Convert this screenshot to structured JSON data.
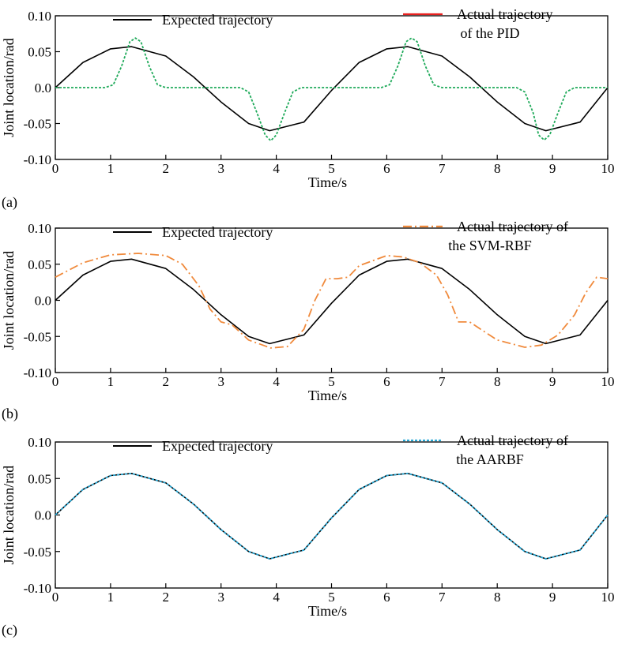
{
  "chart_data": [
    {
      "panel": "(a)",
      "type": "line",
      "xlabel": "Time/s",
      "ylabel": "Joint location/rad",
      "xlim": [
        0,
        10
      ],
      "ylim": [
        -0.1,
        0.1
      ],
      "xticks": [
        0,
        1,
        2,
        3,
        4,
        5,
        6,
        7,
        8,
        9,
        10
      ],
      "yticks": [
        0.1,
        0.05,
        0.0,
        -0.05,
        -0.1
      ],
      "ytick_labels": [
        "0.10",
        "0.05",
        "0.0",
        "-0.05",
        "-0.10"
      ],
      "series": [
        {
          "name": "Expected trajectory",
          "legend": "Expected trajectory",
          "style": "solid",
          "color": "#000000",
          "x": [
            0,
            0.5,
            1,
            1.38,
            2,
            2.5,
            3,
            3.5,
            3.88,
            4.5,
            5,
            5.5,
            6,
            6.38,
            7,
            7.5,
            8,
            8.5,
            8.88,
            9.5,
            10
          ],
          "y": [
            0,
            0.035,
            0.054,
            0.057,
            0.044,
            0.015,
            -0.02,
            -0.05,
            -0.06,
            -0.048,
            -0.004,
            0.035,
            0.054,
            0.057,
            0.044,
            0.015,
            -0.02,
            -0.05,
            -0.06,
            -0.048,
            0
          ]
        },
        {
          "name": "Actual trajectory of the PID",
          "legend": "Actual trajectory",
          "legend2": "of the PID",
          "style": "dotted",
          "color": "#1faa5a",
          "legend_color": "#e8201f",
          "x": [
            0,
            0.9,
            1.05,
            1.2,
            1.35,
            1.45,
            1.55,
            1.7,
            1.85,
            2.0,
            3.35,
            3.5,
            3.65,
            3.8,
            3.9,
            4.0,
            4.15,
            4.3,
            4.45,
            5.9,
            6.05,
            6.2,
            6.35,
            6.45,
            6.55,
            6.7,
            6.85,
            7.0,
            8.35,
            8.5,
            8.65,
            8.75,
            8.85,
            8.95,
            9.1,
            9.25,
            9.4,
            10
          ],
          "y": [
            0,
            0,
            0.004,
            0.03,
            0.064,
            0.069,
            0.064,
            0.03,
            0.004,
            0,
            0,
            -0.006,
            -0.035,
            -0.066,
            -0.074,
            -0.066,
            -0.035,
            -0.006,
            0,
            0,
            0.004,
            0.03,
            0.064,
            0.069,
            0.064,
            0.03,
            0.004,
            0,
            0,
            -0.006,
            -0.035,
            -0.066,
            -0.073,
            -0.066,
            -0.035,
            -0.006,
            0,
            0
          ]
        }
      ]
    },
    {
      "panel": "(b)",
      "type": "line",
      "xlabel": "Time/s",
      "ylabel": "Joint location/rad",
      "xlim": [
        0,
        10
      ],
      "ylim": [
        -0.1,
        0.1
      ],
      "xticks": [
        0,
        1,
        2,
        3,
        4,
        5,
        6,
        7,
        8,
        9,
        10
      ],
      "yticks": [
        0.1,
        0.05,
        0.0,
        -0.05,
        -0.1
      ],
      "ytick_labels": [
        "0.10",
        "0.05",
        "0.0",
        "-0.05",
        "-0.10"
      ],
      "series": [
        {
          "name": "Expected trajectory",
          "legend": "Expected trajectory",
          "style": "solid",
          "color": "#000000",
          "x": [
            0,
            0.5,
            1,
            1.38,
            2,
            2.5,
            3,
            3.5,
            3.88,
            4.5,
            5,
            5.5,
            6,
            6.38,
            7,
            7.5,
            8,
            8.5,
            8.88,
            9.5,
            10
          ],
          "y": [
            0,
            0.035,
            0.054,
            0.057,
            0.044,
            0.015,
            -0.02,
            -0.05,
            -0.06,
            -0.048,
            -0.004,
            0.035,
            0.054,
            0.057,
            0.044,
            0.015,
            -0.02,
            -0.05,
            -0.06,
            -0.048,
            0
          ]
        },
        {
          "name": "Actual trajectory of the SVM-RBF",
          "legend": "Actual trajectory of",
          "legend2": "the SVM-RBF",
          "style": "dashdot",
          "color": "#f08a3c",
          "x": [
            0,
            0.5,
            1,
            1.5,
            2,
            2.3,
            2.6,
            2.8,
            3.0,
            3.2,
            3.5,
            3.9,
            4.2,
            4.5,
            4.7,
            4.9,
            5.1,
            5.3,
            5.5,
            6,
            6.3,
            6.6,
            6.9,
            7.1,
            7.3,
            7.5,
            7.7,
            8.0,
            8.5,
            8.8,
            9.1,
            9.4,
            9.6,
            9.8,
            10
          ],
          "y": [
            0.032,
            0.052,
            0.063,
            0.065,
            0.062,
            0.05,
            0.02,
            -0.012,
            -0.03,
            -0.034,
            -0.055,
            -0.066,
            -0.064,
            -0.04,
            0.0,
            0.03,
            0.03,
            0.032,
            0.048,
            0.062,
            0.06,
            0.052,
            0.035,
            0.008,
            -0.03,
            -0.03,
            -0.04,
            -0.055,
            -0.065,
            -0.062,
            -0.048,
            -0.02,
            0.01,
            0.032,
            0.03
          ]
        }
      ]
    },
    {
      "panel": "(c)",
      "type": "line",
      "xlabel": "Time/s",
      "ylabel": "Joint location/rad",
      "xlim": [
        0,
        10
      ],
      "ylim": [
        -0.1,
        0.1
      ],
      "xticks": [
        0,
        1,
        2,
        3,
        4,
        5,
        6,
        7,
        8,
        9,
        10
      ],
      "yticks": [
        0.1,
        0.05,
        0.0,
        -0.05,
        -0.1
      ],
      "ytick_labels": [
        "0.10",
        "0.05",
        "0.0",
        "-0.05",
        "-0.10"
      ],
      "series": [
        {
          "name": "Expected trajectory",
          "legend": "Expected trajectory",
          "style": "solid",
          "color": "#000000",
          "x": [
            0,
            0.5,
            1,
            1.38,
            2,
            2.5,
            3,
            3.5,
            3.88,
            4.5,
            5,
            5.5,
            6,
            6.38,
            7,
            7.5,
            8,
            8.5,
            8.88,
            9.5,
            10
          ],
          "y": [
            0,
            0.035,
            0.054,
            0.057,
            0.044,
            0.015,
            -0.02,
            -0.05,
            -0.06,
            -0.048,
            -0.004,
            0.035,
            0.054,
            0.057,
            0.044,
            0.015,
            -0.02,
            -0.05,
            -0.06,
            -0.048,
            0
          ]
        },
        {
          "name": "Actual trajectory of the AARBF",
          "legend": "Actual trajectory of",
          "legend2": "the AARBF",
          "style": "dotted",
          "color": "#29a9d6",
          "x": [
            0,
            0.5,
            1,
            1.38,
            2,
            2.5,
            3,
            3.5,
            3.88,
            4.5,
            5,
            5.5,
            6,
            6.38,
            7,
            7.5,
            8,
            8.5,
            8.88,
            9.5,
            10
          ],
          "y": [
            0,
            0.035,
            0.054,
            0.057,
            0.044,
            0.015,
            -0.02,
            -0.05,
            -0.06,
            -0.048,
            -0.004,
            0.035,
            0.054,
            0.057,
            0.044,
            0.015,
            -0.02,
            -0.05,
            -0.06,
            -0.048,
            0
          ]
        }
      ]
    }
  ]
}
